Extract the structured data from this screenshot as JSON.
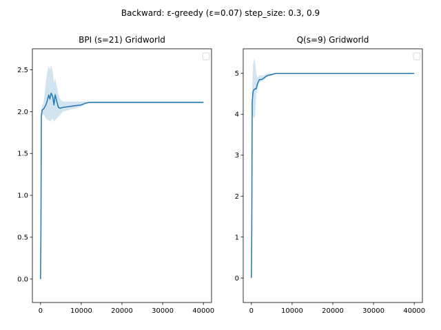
{
  "figure": {
    "suptitle": "Backward: ε-greedy (ε=0.07) step_size: 0.3, 0.9"
  },
  "chart_data": [
    {
      "type": "line",
      "title": "BPI (s=21) Gridworld",
      "xlim": [
        -2000,
        42000
      ],
      "ylim": [
        -0.28,
        2.75
      ],
      "xticks": [
        0,
        10000,
        20000,
        30000,
        40000
      ],
      "xtick_labels": [
        "0",
        "10000",
        "20000",
        "30000",
        "40000"
      ],
      "yticks": [
        0.0,
        0.5,
        1.0,
        1.5,
        2.0,
        2.5
      ],
      "ytick_labels": [
        "0.0",
        "0.5",
        "1.0",
        "1.5",
        "2.0",
        "2.5"
      ],
      "legend": "top-right (empty)",
      "series": [
        {
          "x": [
            0,
            100,
            200,
            400,
            700,
            1000,
            1300,
            1600,
            2000,
            2300,
            2600,
            3000,
            3300,
            3600,
            4000,
            4400,
            4800,
            5500,
            7000,
            8500,
            10000,
            11000,
            12000,
            15000,
            20000,
            25000,
            30000,
            35000,
            40000
          ],
          "y": [
            0.0,
            0.55,
            1.95,
            2.02,
            2.03,
            2.05,
            2.08,
            2.12,
            2.2,
            2.15,
            2.22,
            2.18,
            2.08,
            2.2,
            2.12,
            2.05,
            2.04,
            2.05,
            2.06,
            2.07,
            2.08,
            2.1,
            2.11,
            2.11,
            2.11,
            2.11,
            2.11,
            2.11,
            2.11
          ],
          "lower": [
            0.0,
            0.5,
            1.9,
            1.95,
            1.97,
            1.95,
            1.92,
            1.9,
            1.9,
            1.88,
            1.9,
            1.92,
            1.88,
            1.9,
            1.92,
            1.94,
            1.96,
            2.0,
            2.02,
            2.04,
            2.06,
            2.09,
            2.1,
            2.1,
            2.1,
            2.1,
            2.1,
            2.1,
            2.1
          ],
          "upper": [
            0.0,
            0.6,
            2.0,
            2.08,
            2.1,
            2.2,
            2.35,
            2.45,
            2.55,
            2.5,
            2.55,
            2.48,
            2.35,
            2.4,
            2.3,
            2.2,
            2.15,
            2.12,
            2.12,
            2.12,
            2.12,
            2.12,
            2.12,
            2.12,
            2.12,
            2.12,
            2.12,
            2.12,
            2.12
          ]
        }
      ]
    },
    {
      "type": "line",
      "title": "Q(s=9) Gridworld",
      "xlim": [
        -2000,
        42000
      ],
      "ylim": [
        -0.6,
        5.6
      ],
      "xticks": [
        0,
        10000,
        20000,
        30000,
        40000
      ],
      "xtick_labels": [
        "0",
        "10000",
        "20000",
        "30000",
        "40000"
      ],
      "yticks": [
        0,
        1,
        2,
        3,
        4,
        5
      ],
      "ytick_labels": [
        "0",
        "1",
        "2",
        "3",
        "4",
        "5"
      ],
      "legend": "top-right (empty)",
      "series": [
        {
          "x": [
            0,
            100,
            200,
            400,
            600,
            900,
            1200,
            1500,
            2000,
            2500,
            3000,
            3500,
            4000,
            5000,
            6000,
            7000,
            10000,
            15000,
            20000,
            25000,
            30000,
            35000,
            40000
          ],
          "y": [
            0.0,
            1.2,
            4.3,
            4.55,
            4.6,
            4.62,
            4.62,
            4.75,
            4.85,
            4.85,
            4.88,
            4.92,
            4.95,
            4.97,
            5.0,
            5.0,
            5.0,
            5.0,
            5.0,
            5.0,
            5.0,
            5.0,
            5.0
          ],
          "lower": [
            0.0,
            1.1,
            4.0,
            3.95,
            3.9,
            3.95,
            4.5,
            4.65,
            4.78,
            4.8,
            4.84,
            4.88,
            4.92,
            4.95,
            4.99,
            4.99,
            4.99,
            4.99,
            4.99,
            4.99,
            4.99,
            4.99,
            4.99
          ],
          "upper": [
            0.0,
            1.3,
            4.6,
            5.2,
            5.35,
            5.3,
            5.0,
            4.9,
            4.95,
            4.95,
            4.95,
            4.98,
            5.0,
            5.0,
            5.01,
            5.01,
            5.01,
            5.01,
            5.01,
            5.01,
            5.01,
            5.01,
            5.01
          ]
        }
      ]
    }
  ]
}
